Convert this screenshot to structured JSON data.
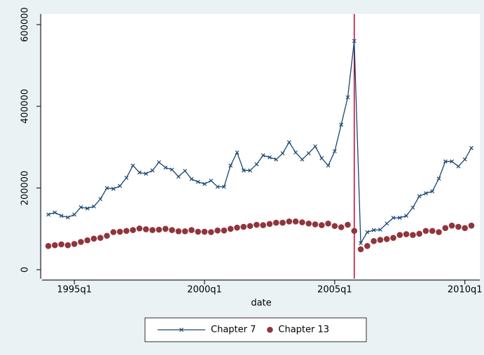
{
  "chart_data": {
    "type": "line",
    "x_label": "date",
    "x": [
      "1994q1",
      "1994q2",
      "1994q3",
      "1994q4",
      "1995q1",
      "1995q2",
      "1995q3",
      "1995q4",
      "1996q1",
      "1996q2",
      "1996q3",
      "1996q4",
      "1997q1",
      "1997q2",
      "1997q3",
      "1997q4",
      "1998q1",
      "1998q2",
      "1998q3",
      "1998q4",
      "1999q1",
      "1999q2",
      "1999q3",
      "1999q4",
      "2000q1",
      "2000q2",
      "2000q3",
      "2000q4",
      "2001q1",
      "2001q2",
      "2001q3",
      "2001q4",
      "2002q1",
      "2002q2",
      "2002q3",
      "2002q4",
      "2003q1",
      "2003q2",
      "2003q3",
      "2003q4",
      "2004q1",
      "2004q2",
      "2004q3",
      "2004q4",
      "2005q1",
      "2005q2",
      "2005q3",
      "2005q4",
      "2006q1",
      "2006q2",
      "2006q3",
      "2006q4",
      "2007q1",
      "2007q2",
      "2007q3",
      "2007q4",
      "2008q1",
      "2008q2",
      "2008q3",
      "2008q4",
      "2009q1",
      "2009q2",
      "2009q3",
      "2009q4",
      "2010q1",
      "2010q2"
    ],
    "xticks": [
      "1995q1",
      "2000q1",
      "2005q1",
      "2010q1"
    ],
    "xline": "2005q4",
    "xline_color": "#c10534",
    "ylim": [
      -22000,
      626000
    ],
    "yticks": [
      0,
      200000,
      400000,
      600000
    ],
    "series": [
      {
        "name": "Chapter 7",
        "color": "#1a476f",
        "marker": "x",
        "connect": true,
        "values": [
          135000,
          140000,
          132000,
          128000,
          135000,
          153000,
          150000,
          155000,
          173000,
          200000,
          198000,
          205000,
          225000,
          255000,
          238000,
          235000,
          243000,
          263000,
          250000,
          245000,
          228000,
          242000,
          222000,
          215000,
          210000,
          218000,
          203000,
          203000,
          255000,
          287000,
          243000,
          243000,
          258000,
          280000,
          275000,
          270000,
          285000,
          312000,
          287000,
          270000,
          285000,
          302000,
          273000,
          255000,
          290000,
          355000,
          422000,
          560000,
          65000,
          92000,
          97000,
          98000,
          113000,
          127000,
          127000,
          132000,
          152000,
          180000,
          187000,
          192000,
          223000,
          265000,
          265000,
          253000,
          270000,
          298000
        ]
      },
      {
        "name": "Chapter 13",
        "color": "#90353b",
        "marker": "circle",
        "connect": false,
        "values": [
          58000,
          60000,
          62000,
          60000,
          63000,
          68000,
          72000,
          76000,
          78000,
          83000,
          92000,
          93000,
          95000,
          97000,
          101000,
          99000,
          97000,
          98000,
          100000,
          97000,
          94000,
          94000,
          97000,
          93000,
          93000,
          92000,
          96000,
          96000,
          100000,
          103000,
          105000,
          107000,
          110000,
          109000,
          112000,
          115000,
          115000,
          118000,
          118000,
          116000,
          113000,
          111000,
          109000,
          113000,
          107000,
          104000,
          110000,
          95000,
          50000,
          58000,
          70000,
          73000,
          75000,
          78000,
          85000,
          87000,
          85000,
          88000,
          95000,
          95000,
          92000,
          102000,
          108000,
          105000,
          102000,
          108000
        ]
      }
    ]
  }
}
